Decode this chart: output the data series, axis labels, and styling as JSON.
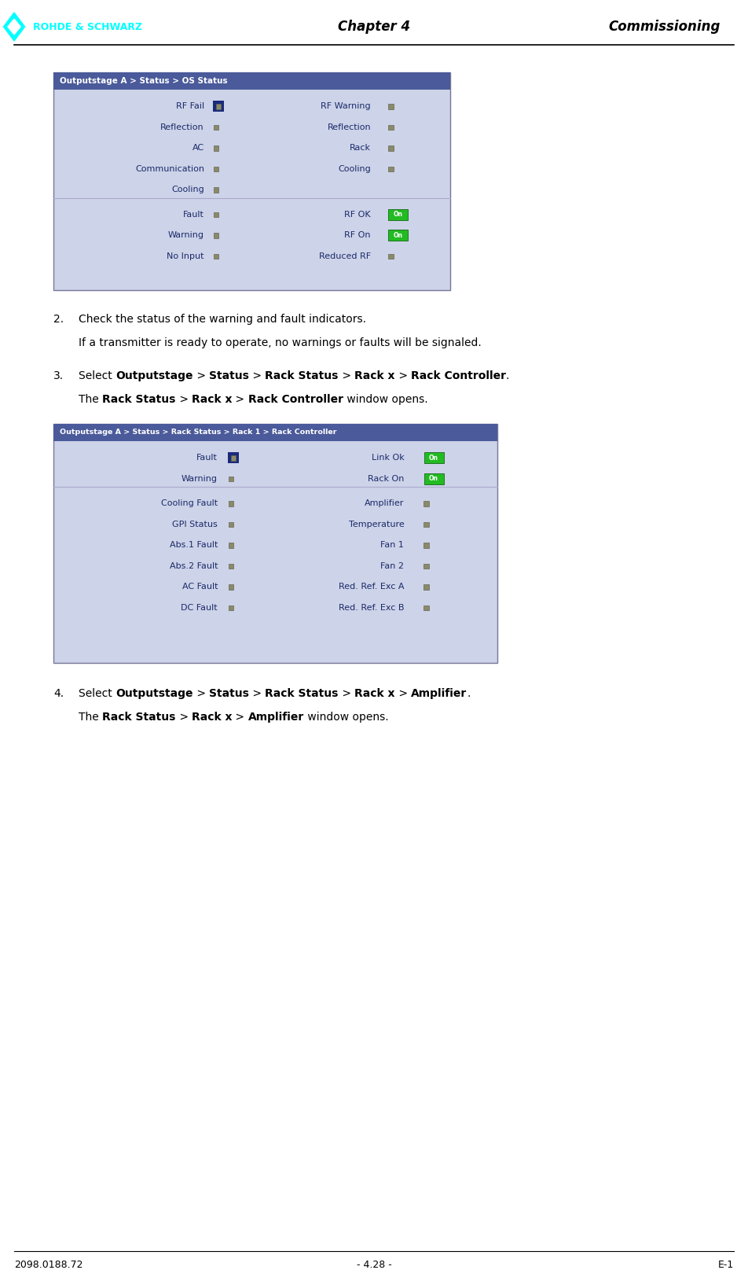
{
  "page_bg": "#ffffff",
  "header_left": "ROHDE & SCHWARZ",
  "header_center": "Chapter 4",
  "header_right": "Commissioning",
  "footer_left": "2098.0188.72",
  "footer_center": "- 4.28 -",
  "footer_right": "E-1",
  "logo_color": "#00ffff",
  "panel1_title": "Outputstage A > Status > OS Status",
  "panel1_title_bg": "#4a5a9a",
  "panel1_title_color": "#ffffff",
  "panel1_bg": "#cdd3e8",
  "panel1_left_labels": [
    "RF Fail",
    "Reflection",
    "AC",
    "Communication",
    "Cooling"
  ],
  "panel1_right_labels": [
    "RF Warning",
    "Reflection",
    "Rack",
    "Cooling"
  ],
  "panel1_bottom_left_labels": [
    "Fault",
    "Warning",
    "No Input"
  ],
  "panel1_bottom_right_labels": [
    "RF OK",
    "RF On",
    "Reduced RF"
  ],
  "panel1_rfail_highlight_bg": "#1a2a7a",
  "panel1_indicator_color": "#8a8a6a",
  "panel1_green_color": "#22bb22",
  "panel2_title": "Outputstage A > Status > Rack Status > Rack 1 > Rack Controller",
  "panel2_title_bg": "#4a5a9a",
  "panel2_title_color": "#ffffff",
  "panel2_bg": "#cdd3e8",
  "panel2_left_top_labels": [
    "Fault",
    "Warning"
  ],
  "panel2_left_bottom_labels": [
    "Cooling Fault",
    "GPI Status",
    "Abs.1 Fault",
    "Abs.2 Fault",
    "AC Fault",
    "DC Fault"
  ],
  "panel2_right_top_labels": [
    "Link Ok",
    "Rack On"
  ],
  "panel2_right_bottom_labels": [
    "Amplifier",
    "Temperature",
    "Fan 1",
    "Fan 2",
    "Red. Ref. Exc A",
    "Red. Ref. Exc B"
  ],
  "text_color": "#1a2a6a",
  "body_font_size": 10.0,
  "panel_font_size": 8.0
}
